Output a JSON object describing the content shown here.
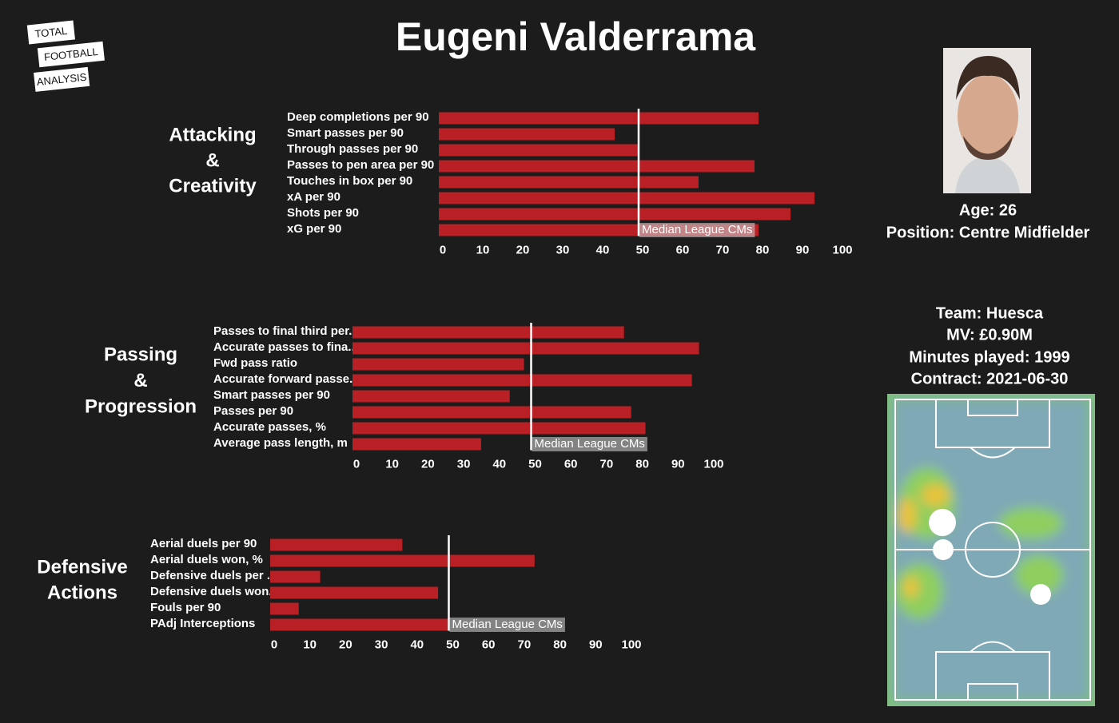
{
  "title": "Eugeni Valderrama",
  "logo": [
    "TOTAL",
    "FOOTBALL",
    "ANALYSIS"
  ],
  "player": {
    "age": "Age: 26",
    "position": "Position: Centre Midfielder",
    "team": "Team: Huesca",
    "mv": "MV: £0.90M",
    "minutes": "Minutes played: 1999",
    "contract": "Contract: 2021-06-30"
  },
  "chart_data": [
    {
      "type": "barh",
      "section": [
        "Attacking",
        "&",
        "Creativity"
      ],
      "color": "#b92025",
      "categories": [
        "Deep completions per 90",
        "Smart passes per 90",
        "Through passes per 90",
        "Passes to pen area per 90",
        "Touches in box per 90",
        "xA per 90",
        "Shots per 90",
        "xG per 90"
      ],
      "values": [
        80,
        44,
        50,
        79,
        65,
        94,
        88,
        80
      ],
      "xlim": [
        0,
        100
      ],
      "xticks": [
        0,
        10,
        20,
        30,
        40,
        50,
        60,
        70,
        80,
        90,
        100
      ],
      "median": {
        "value": 50,
        "label": "Median League CMs"
      }
    },
    {
      "type": "barh",
      "section": [
        "Passing",
        "&",
        "Progression"
      ],
      "color": "#b92025",
      "categories": [
        "Passes to final third per..",
        "Accurate passes to fina..",
        "Fwd pass ratio",
        "Accurate forward passe..",
        "Smart passes per 90",
        "Passes per 90",
        "Accurate passes, %",
        "Average pass length, m"
      ],
      "values": [
        76,
        97,
        48,
        95,
        44,
        78,
        82,
        36
      ],
      "xlim": [
        0,
        100
      ],
      "xticks": [
        0,
        10,
        20,
        30,
        40,
        50,
        60,
        70,
        80,
        90,
        100
      ],
      "median": {
        "value": 50,
        "label": "Median League CMs"
      }
    },
    {
      "type": "barh",
      "section": [
        "Defensive",
        "Actions"
      ],
      "color": "#b92025",
      "categories": [
        "Aerial duels per 90",
        "Aerial duels won, %",
        "Defensive duels per ..",
        "Defensive duels won..",
        "Fouls per 90",
        "PAdj Interceptions"
      ],
      "values": [
        37,
        74,
        14,
        47,
        8,
        50
      ],
      "xlim": [
        0,
        100
      ],
      "xticks": [
        0,
        10,
        20,
        30,
        40,
        50,
        60,
        70,
        80,
        90,
        100
      ],
      "median": {
        "value": 50,
        "label": "Median League CMs"
      }
    }
  ]
}
